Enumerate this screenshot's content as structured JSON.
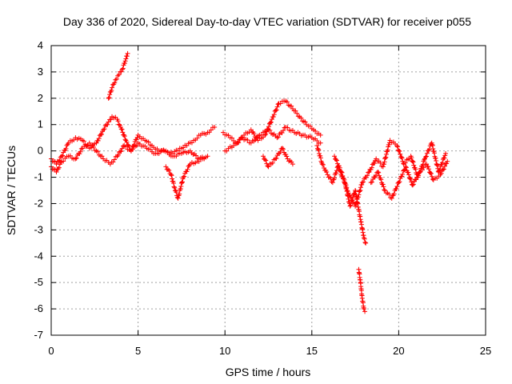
{
  "chart_data": {
    "type": "scatter",
    "title": "Day 336 of 2020, Sidereal Day-to-day VTEC variation (SDTVAR) for receiver p055",
    "xlabel": "GPS time / hours",
    "ylabel": "SDTVAR / TECUs",
    "xlim": [
      0,
      25
    ],
    "ylim": [
      -7,
      4
    ],
    "xticks": [
      0,
      5,
      10,
      15,
      20,
      25
    ],
    "yticks": [
      4,
      3,
      2,
      1,
      0,
      -1,
      -2,
      -3,
      -4,
      -5,
      -6,
      -7
    ],
    "grid": true,
    "marker": "+",
    "color": "#ff0000",
    "series": [
      {
        "name": "s1",
        "x": [
          0.0,
          0.3,
          0.6,
          1.0,
          1.4,
          1.8,
          2.2,
          2.6,
          3.0,
          3.3,
          3.5,
          3.8,
          4.0,
          4.3,
          4.6,
          5.0,
          5.4,
          5.8,
          6.2,
          6.6,
          7.0,
          7.4,
          7.8,
          8.2,
          8.6,
          9.0,
          9.4
        ],
        "y": [
          -0.3,
          -0.5,
          -0.2,
          0.3,
          0.5,
          0.4,
          0.1,
          0.3,
          0.8,
          1.1,
          1.3,
          1.2,
          0.9,
          0.4,
          0.0,
          0.6,
          0.4,
          0.2,
          0.0,
          0.0,
          -0.1,
          0.1,
          0.2,
          0.4,
          0.6,
          0.7,
          0.9
        ]
      },
      {
        "name": "s2",
        "x": [
          0.0,
          0.3,
          0.6,
          1.0,
          1.4,
          1.8,
          2.2,
          2.6,
          3.0,
          3.4,
          3.8,
          4.2,
          4.6,
          5.0,
          5.5,
          6.0,
          6.5,
          7.0,
          7.5,
          8.0,
          8.5,
          9.0
        ],
        "y": [
          -0.6,
          -0.8,
          -0.4,
          -0.2,
          -0.3,
          0.1,
          0.3,
          0.0,
          -0.3,
          -0.5,
          -0.2,
          0.2,
          0.0,
          0.3,
          0.1,
          -0.1,
          0.0,
          -0.2,
          -0.1,
          0.0,
          -0.3,
          -0.2
        ]
      },
      {
        "name": "s3",
        "x": [
          3.3,
          3.5,
          3.7,
          3.9,
          4.1,
          4.3,
          4.4
        ],
        "y": [
          2.0,
          2.4,
          2.7,
          2.9,
          3.1,
          3.5,
          3.7
        ]
      },
      {
        "name": "s4",
        "x": [
          6.6,
          6.9,
          7.1,
          7.3,
          7.6,
          8.0,
          8.4,
          8.8
        ],
        "y": [
          -0.6,
          -0.9,
          -1.4,
          -1.8,
          -1.0,
          -0.5,
          -0.4,
          -0.3
        ]
      },
      {
        "name": "s5",
        "x": [
          9.9,
          10.3,
          10.7,
          11.1,
          11.5,
          11.9,
          12.3,
          12.7,
          13.1,
          13.5,
          13.9,
          14.3,
          14.7,
          15.1,
          15.5
        ],
        "y": [
          0.7,
          0.5,
          0.3,
          0.6,
          0.8,
          0.4,
          0.6,
          1.2,
          1.8,
          1.9,
          1.6,
          1.3,
          1.0,
          0.8,
          0.6
        ]
      },
      {
        "name": "s6",
        "x": [
          10.0,
          10.5,
          11.0,
          11.5,
          12.0,
          12.5,
          13.0,
          13.5,
          14.0,
          14.5,
          15.0,
          15.5
        ],
        "y": [
          0.0,
          0.2,
          0.5,
          0.3,
          0.6,
          0.8,
          0.5,
          0.9,
          0.7,
          0.6,
          0.5,
          0.3
        ]
      },
      {
        "name": "s7",
        "x": [
          12.2,
          12.5,
          12.9,
          13.3,
          13.6,
          13.9
        ],
        "y": [
          -0.2,
          -0.6,
          -0.3,
          0.1,
          -0.3,
          -0.5
        ]
      },
      {
        "name": "s8",
        "x": [
          15.3,
          15.6,
          15.9,
          16.2,
          16.5,
          16.9,
          17.2,
          17.5,
          17.8,
          18.0,
          18.1
        ],
        "y": [
          0.2,
          -0.5,
          -0.9,
          -1.2,
          -0.6,
          -1.2,
          -2.1,
          -1.5,
          -2.6,
          -3.3,
          -3.5
        ]
      },
      {
        "name": "s9",
        "x": [
          17.7,
          17.8,
          17.9,
          18.0,
          18.05
        ],
        "y": [
          -4.5,
          -5.0,
          -5.6,
          -6.0,
          -6.1
        ]
      },
      {
        "name": "s10",
        "x": [
          16.3,
          16.7,
          17.1,
          17.5,
          17.9,
          18.3,
          18.7,
          19.1,
          19.5,
          19.9,
          20.3,
          20.7,
          21.1,
          21.5,
          21.9,
          22.3,
          22.7
        ],
        "y": [
          -0.2,
          -0.8,
          -1.6,
          -2.1,
          -1.2,
          -0.8,
          -0.3,
          -0.6,
          0.4,
          0.2,
          -0.5,
          -0.2,
          -1.0,
          -0.3,
          0.3,
          -0.8,
          -0.1
        ]
      },
      {
        "name": "s11",
        "x": [
          18.4,
          18.8,
          19.2,
          19.6,
          20.0,
          20.4,
          20.8,
          21.2,
          21.6,
          22.0,
          22.4,
          22.8
        ],
        "y": [
          -1.2,
          -0.8,
          -1.5,
          -1.8,
          -1.2,
          -0.6,
          -1.3,
          -0.8,
          -0.5,
          -1.1,
          -0.9,
          -0.4
        ]
      }
    ]
  }
}
